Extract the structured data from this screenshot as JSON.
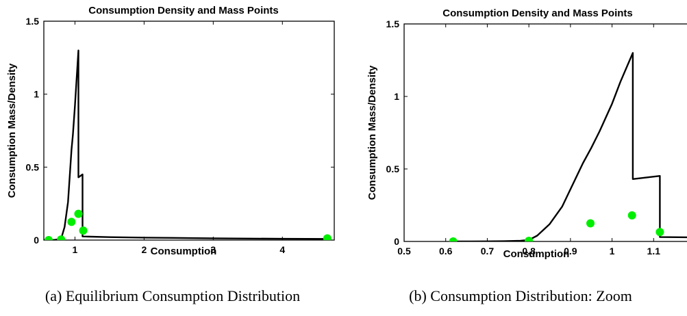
{
  "chart_data": [
    {
      "type": "line",
      "title": "Consumption Density and Mass Points",
      "xlabel": "Consumption",
      "ylabel": "Consumption Mass/Density",
      "xlim": [
        0.55,
        4.75
      ],
      "ylim": [
        0,
        1.5
      ],
      "xticks": [
        1,
        2,
        3,
        4
      ],
      "xtick_labels": [
        "1",
        "2",
        "3",
        "4"
      ],
      "yticks": [
        0,
        0.5,
        1,
        1.5
      ],
      "ytick_labels": [
        "0",
        "0.5",
        "1",
        "1.5"
      ],
      "grid": false,
      "caption": "(a) Equilibrium Consumption Distribution",
      "series": [
        {
          "kind": "line",
          "color": "#000000",
          "x": [
            0.55,
            0.62,
            0.7,
            0.8,
            0.85,
            0.9,
            0.95,
            0.97,
            1.0,
            1.02,
            1.05,
            1.05,
            1.08,
            1.11,
            1.11,
            1.5,
            2.0,
            3.0,
            4.0,
            4.7
          ],
          "y": [
            0,
            0,
            0.001,
            0.008,
            0.09,
            0.26,
            0.62,
            0.72,
            0.92,
            1.07,
            1.3,
            0.43,
            0.44,
            0.45,
            0.025,
            0.02,
            0.017,
            0.012,
            0.009,
            0.008
          ]
        },
        {
          "kind": "scatter",
          "color": "#00ee00",
          "x": [
            0.62,
            0.8,
            0.95,
            1.05,
            1.12,
            4.65
          ],
          "y": [
            0.0,
            0.004,
            0.125,
            0.18,
            0.065,
            0.012
          ]
        }
      ]
    },
    {
      "type": "line",
      "title": "Consumption Density and Mass Points",
      "xlabel": "Consumption",
      "ylabel": "Consumption Mass/Density",
      "xlim": [
        0.5,
        1.2
      ],
      "ylim": [
        0,
        1.5
      ],
      "xticks": [
        0.5,
        0.6,
        0.7,
        0.8,
        0.9,
        1.0,
        1.1
      ],
      "xtick_labels": [
        "0.5",
        "0.6",
        "0.7",
        "0.8",
        "0.9",
        "1",
        "1.1"
      ],
      "yticks": [
        0,
        0.5,
        1,
        1.5
      ],
      "ytick_labels": [
        "0",
        "0.5",
        "1",
        "1.5"
      ],
      "grid": false,
      "caption": "(b) Consumption Distribution: Zoom",
      "series": [
        {
          "kind": "line",
          "color": "#000000",
          "x": [
            0.62,
            0.66,
            0.7,
            0.74,
            0.78,
            0.8,
            0.82,
            0.85,
            0.88,
            0.91,
            0.93,
            0.95,
            0.97,
            1.0,
            1.02,
            1.05,
            1.05,
            1.08,
            1.115,
            1.115,
            1.2
          ],
          "y": [
            0,
            0.0005,
            0.001,
            0.002,
            0.005,
            0.01,
            0.04,
            0.12,
            0.24,
            0.42,
            0.54,
            0.645,
            0.76,
            0.95,
            1.1,
            1.3,
            0.43,
            0.44,
            0.452,
            0.03,
            0.028
          ]
        },
        {
          "kind": "scatter",
          "color": "#00ee00",
          "x": [
            0.618,
            0.8,
            0.948,
            1.048,
            1.115
          ],
          "y": [
            0.0,
            0.004,
            0.125,
            0.18,
            0.065
          ]
        }
      ]
    }
  ]
}
